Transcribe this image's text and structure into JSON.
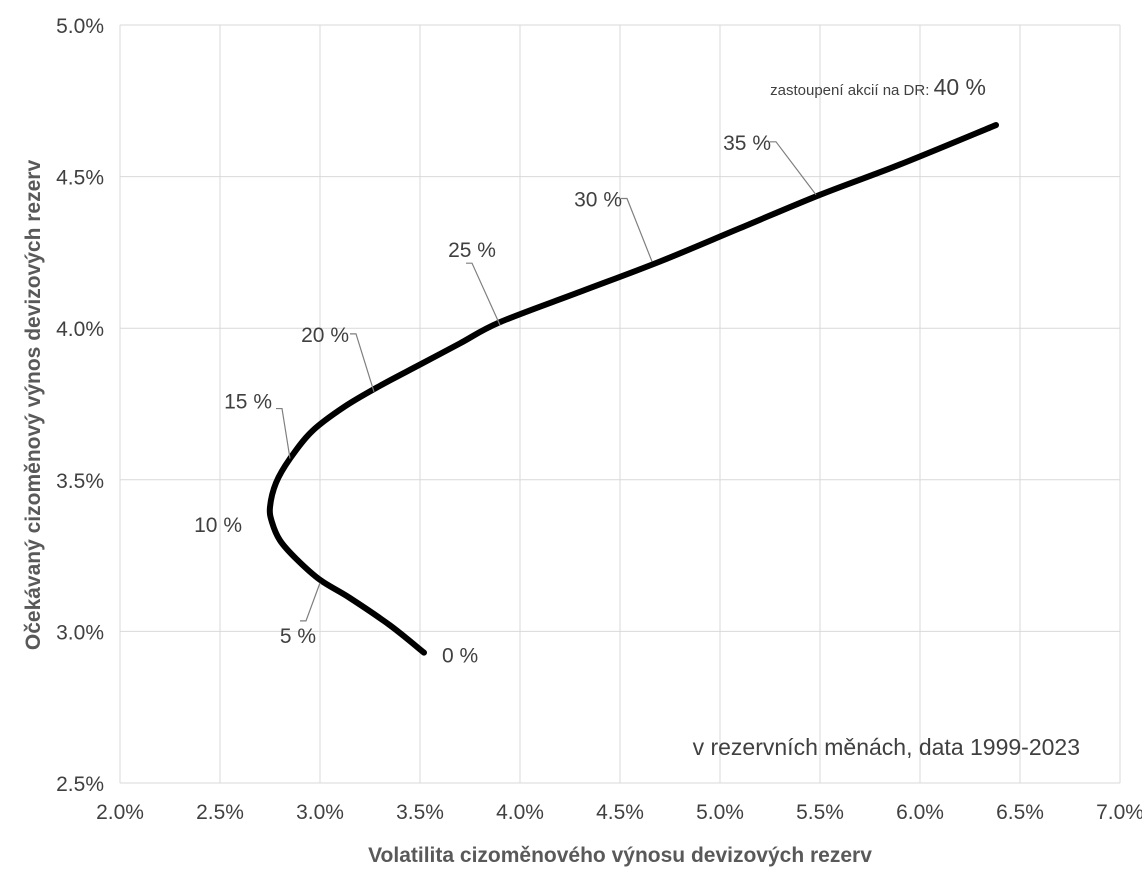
{
  "chart_data": {
    "type": "line",
    "xlabel": "Volatilita cizoměnového výnosu devizových rezerv",
    "ylabel": "Očekávaný cizoměnový výnos devizových rezerv",
    "xlim": [
      2.0,
      7.0
    ],
    "ylim": [
      2.5,
      5.0
    ],
    "x_ticks": [
      "2.0%",
      "2.5%",
      "3.0%",
      "3.5%",
      "4.0%",
      "4.5%",
      "5.0%",
      "5.5%",
      "6.0%",
      "6.5%",
      "7.0%"
    ],
    "y_ticks": [
      "2.5%",
      "3.0%",
      "3.5%",
      "4.0%",
      "4.5%",
      "5.0%"
    ],
    "grid": true,
    "annotation": "v rezervních měnách, data 1999-2023",
    "series": [
      {
        "x": [
          3.52,
          3.35,
          3.15,
          3.0,
          2.88,
          2.8,
          2.76,
          2.75,
          2.78,
          2.85,
          2.96,
          3.12,
          3.3,
          3.5,
          3.7,
          3.9,
          4.3,
          4.7,
          5.1,
          5.5,
          5.9,
          6.38
        ],
        "y": [
          2.93,
          3.02,
          3.11,
          3.17,
          3.24,
          3.3,
          3.36,
          3.41,
          3.49,
          3.57,
          3.66,
          3.74,
          3.81,
          3.88,
          3.95,
          4.02,
          4.12,
          4.22,
          4.33,
          4.44,
          4.54,
          4.67
        ]
      }
    ],
    "point_labels": [
      {
        "text": "0 %",
        "x": 3.52,
        "y": 2.93
      },
      {
        "text": "5 %",
        "x": 3.0,
        "y": 3.16
      },
      {
        "text": "10 %",
        "x": 2.76,
        "y": 3.36
      },
      {
        "text": "15 %",
        "x": 2.85,
        "y": 3.57
      },
      {
        "text": "20 %",
        "x": 3.27,
        "y": 3.79
      },
      {
        "text": "25 %",
        "x": 3.9,
        "y": 4.01
      },
      {
        "text": "30 %",
        "x": 4.66,
        "y": 4.22
      },
      {
        "text": "35 %",
        "x": 5.48,
        "y": 4.44
      },
      {
        "text": "40 %",
        "x": 6.38,
        "y": 4.67
      }
    ],
    "endpoint_prefix": "zastoupení akcií na DR:"
  }
}
